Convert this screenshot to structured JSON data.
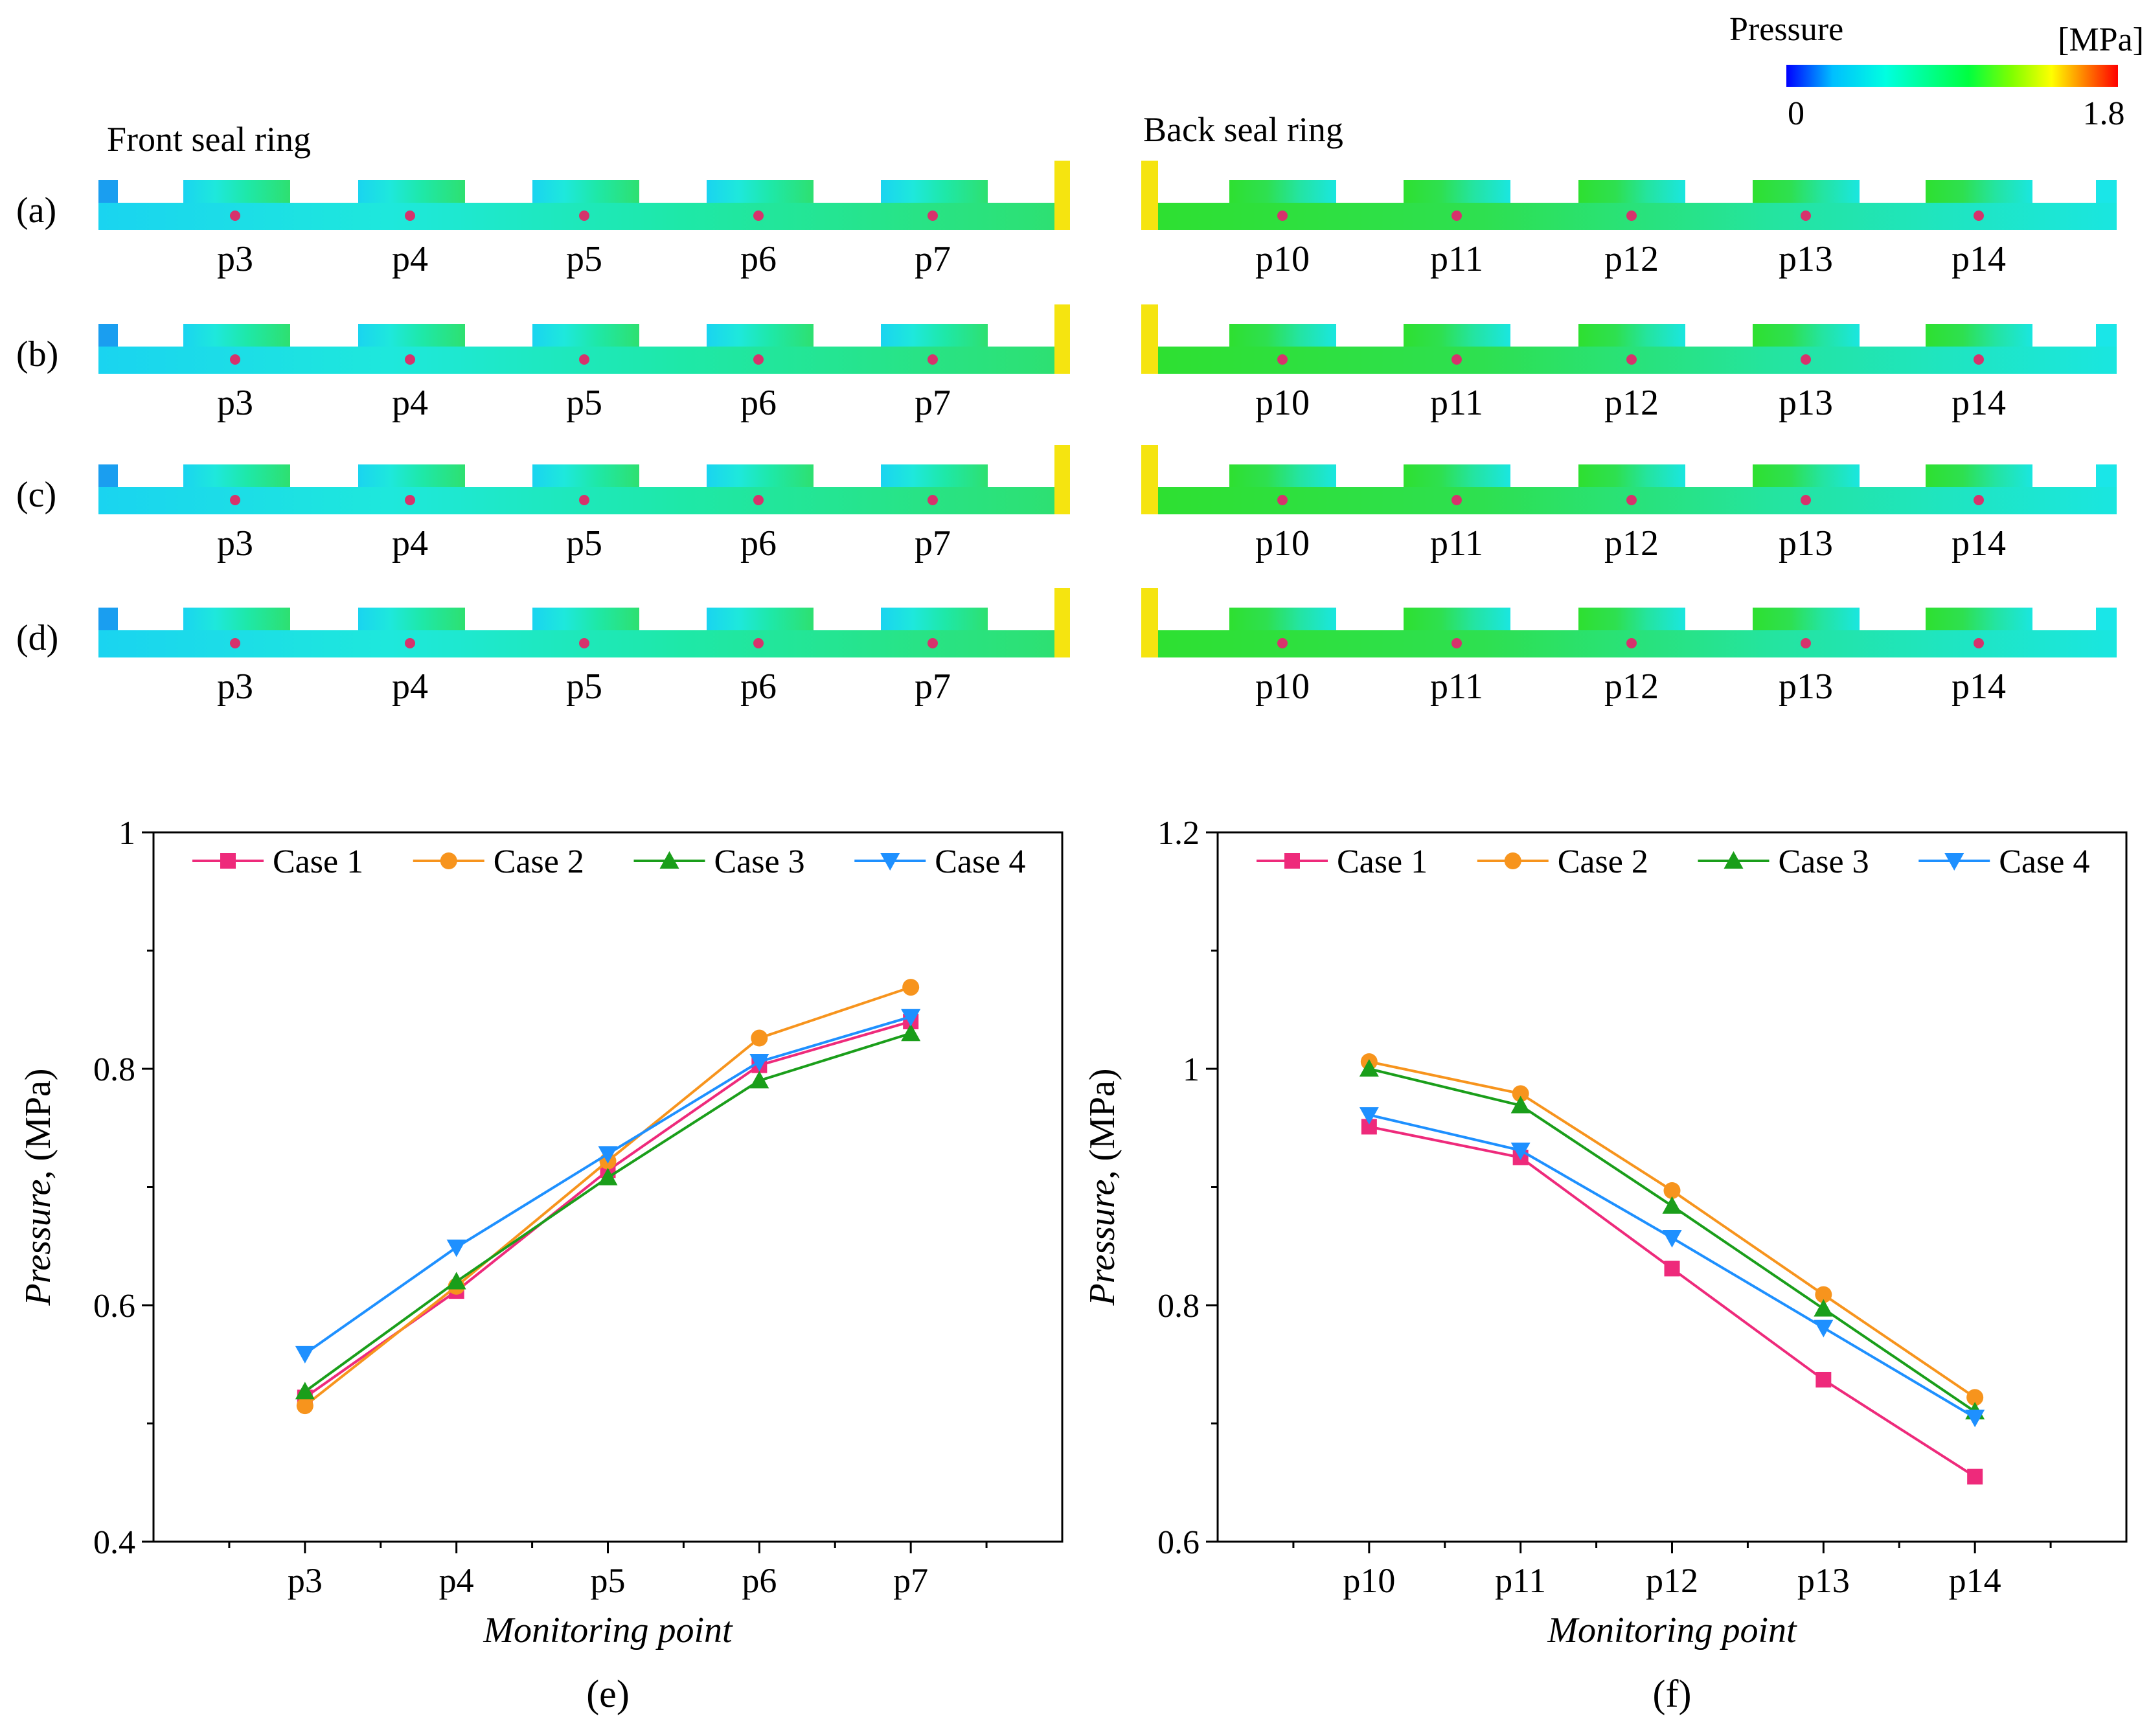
{
  "colorbar": {
    "title": "Pressure",
    "unit": "[MPa]",
    "min_label": "0",
    "max_label": "1.8",
    "min": 0,
    "max": 1.8,
    "colors": [
      "#0000ff",
      "#00bfff",
      "#00ffe0",
      "#00ff40",
      "#80ff00",
      "#ffff00",
      "#ff8000",
      "#ff0000"
    ]
  },
  "contour": {
    "front_title": "Front seal ring",
    "back_title": "Back seal ring",
    "rows": [
      "(a)",
      "(b)",
      "(c)",
      "(d)"
    ],
    "front_points": [
      "p3",
      "p4",
      "p5",
      "p6",
      "p7"
    ],
    "back_points": [
      "p10",
      "p11",
      "p12",
      "p13",
      "p14"
    ],
    "marker_color": "#d6336c"
  },
  "chart_data": [
    {
      "type": "line",
      "panel_label": "(e)",
      "categories": [
        "p3",
        "p4",
        "p5",
        "p6",
        "p7"
      ],
      "xlabel": "Monitoring point",
      "ylabel_italic": "Pressure",
      "ylabel_unit": ", (MPa)",
      "ylim": [
        0.4,
        1.0
      ],
      "yticks": [
        0.4,
        0.6,
        0.8,
        1.0
      ],
      "ytick_labels": [
        "0.4",
        "0.6",
        "0.8",
        "1"
      ],
      "legend_position": "top",
      "series": [
        {
          "name": "Case 1",
          "values": [
            0.522,
            0.612,
            0.714,
            0.803,
            0.84
          ],
          "color": "#ee2a7b",
          "marker": "square"
        },
        {
          "name": "Case 2",
          "values": [
            0.515,
            0.616,
            0.722,
            0.826,
            0.869
          ],
          "color": "#f7941d",
          "marker": "circle"
        },
        {
          "name": "Case 3",
          "values": [
            0.527,
            0.62,
            0.708,
            0.79,
            0.83
          ],
          "color": "#1a9e1a",
          "marker": "triangle-up"
        },
        {
          "name": "Case 4",
          "values": [
            0.559,
            0.649,
            0.728,
            0.806,
            0.844
          ],
          "color": "#1e90ff",
          "marker": "triangle-down"
        }
      ]
    },
    {
      "type": "line",
      "panel_label": "(f)",
      "categories": [
        "p10",
        "p11",
        "p12",
        "p13",
        "p14"
      ],
      "xlabel": "Monitoring point",
      "ylabel_italic": "Pressure",
      "ylabel_unit": ", (MPa)",
      "ylim": [
        0.6,
        1.2
      ],
      "yticks": [
        0.6,
        0.8,
        1.0,
        1.2
      ],
      "ytick_labels": [
        "0.6",
        "0.8",
        "1",
        "1.2"
      ],
      "legend_position": "top",
      "series": [
        {
          "name": "Case 1",
          "values": [
            0.951,
            0.925,
            0.831,
            0.737,
            0.655
          ],
          "color": "#ee2a7b",
          "marker": "square"
        },
        {
          "name": "Case 2",
          "values": [
            1.006,
            0.979,
            0.897,
            0.809,
            0.722
          ],
          "color": "#f7941d",
          "marker": "circle"
        },
        {
          "name": "Case 3",
          "values": [
            1.0,
            0.969,
            0.884,
            0.797,
            0.71
          ],
          "color": "#1a9e1a",
          "marker": "triangle-up"
        },
        {
          "name": "Case 4",
          "values": [
            0.961,
            0.931,
            0.857,
            0.781,
            0.705
          ],
          "color": "#1e90ff",
          "marker": "triangle-down"
        }
      ]
    }
  ]
}
